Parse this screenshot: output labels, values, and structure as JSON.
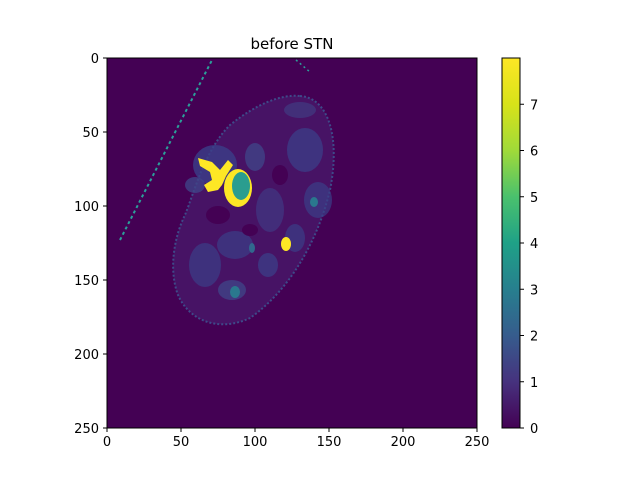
{
  "figure": {
    "title": "before STN",
    "image_size": [
      251,
      251
    ],
    "x_ticks": [
      "0",
      "50",
      "100",
      "150",
      "200",
      "250"
    ],
    "y_ticks": [
      "0",
      "50",
      "100",
      "150",
      "200",
      "250"
    ],
    "colorbar": {
      "colormap": "viridis",
      "min": 0,
      "max": 8,
      "ticks": [
        "0",
        "1",
        "2",
        "3",
        "4",
        "5",
        "6",
        "7"
      ]
    },
    "colors": {
      "background": "#440154",
      "tissue": "#3b528b",
      "tissue_light": "#31688e",
      "organ_mid": "#21918c",
      "bright": "#fde725",
      "highlight": "#b5de2b"
    }
  }
}
